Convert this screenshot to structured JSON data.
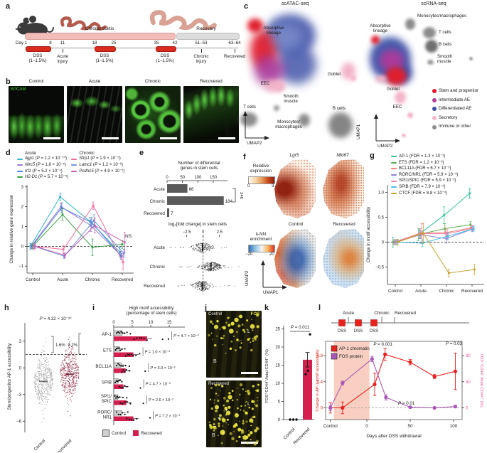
{
  "panel_a": {
    "label": "a",
    "phase1": "Chronic colitis",
    "phase2": "Recovery",
    "day1": "Day 1",
    "ticks": [
      "8",
      "11",
      "18",
      "25",
      "35",
      "42",
      "51–53",
      "63–64"
    ],
    "dss": [
      "DSS",
      "DSS",
      "DSS"
    ],
    "dose": "(1–1.5%)",
    "event_acute": "Acute\ninjury",
    "event_chronic": "Chronic\ninjury",
    "event_recovered": "Recovered"
  },
  "panel_b": {
    "label": "b",
    "stain": "EPCAM",
    "stain_color": "#51d43c",
    "titles": [
      "Control",
      "Acute",
      "Chronic",
      "Recovered"
    ]
  },
  "panel_c": {
    "label": "c",
    "atac_title": "scATAC-seq",
    "rna_title": "scRNA-seq",
    "labels": {
      "absorptive": "Absorptive\nlineage",
      "goblet": "Goblet",
      "eec": "EEC",
      "smooth": "Smooth\nmuscle",
      "tcells": "T cells",
      "mono2": "Monocytes/\nmacrophages",
      "mono1": "Monocytes/macrophages",
      "bcells": "B cells"
    },
    "axes": {
      "x": "UMAP2",
      "y": "UMAP1"
    },
    "legend": [
      {
        "label": "Stem and progenitor",
        "color": "#e8132f"
      },
      {
        "label": "Intermediate AE",
        "color": "#b0399a"
      },
      {
        "label": "Differentiated AE",
        "color": "#3d4fa1"
      },
      {
        "label": "Secretory",
        "color": "#f5b8c8"
      },
      {
        "label": "Immune or other",
        "color": "#8c8c8c"
      }
    ]
  },
  "panel_f": {
    "label": "f",
    "expr_legend_title": "Relative\nexpression",
    "expr_min": "0",
    "expr_max": "3",
    "knn_legend_title": "k-NN\nenrichment",
    "knn_min": "−20",
    "knn_max": "20",
    "plot1": "Lgr5",
    "plot2": "Mki67",
    "plot3": "Control",
    "plot4": "Recovered",
    "axes": {
      "x": "UMAP1",
      "y": "UMAP2"
    }
  },
  "panel_j": {
    "label": "j",
    "stain": "FOS",
    "stain_color": "#e8e23a",
    "img1": "Control",
    "img2": "Recovered",
    "lumen": "L",
    "base": "B"
  },
  "chart_data": [
    {
      "id": "d",
      "type": "line",
      "panel_label": "d",
      "ylabel": "Change in relative gene expression",
      "categories": [
        "Control",
        "Acute",
        "Chronic",
        "Recovered"
      ],
      "yticks": [
        -1,
        0,
        1,
        2,
        3
      ],
      "ylim": [
        -1.35,
        3.1
      ],
      "ns_note": "NS",
      "legend_groups": [
        {
          "title": "Acute",
          "series_idx": [
            0,
            1,
            2,
            3
          ]
        },
        {
          "title": "Chronic",
          "series_idx": [
            4,
            5,
            6
          ]
        }
      ],
      "series": [
        {
          "gene": "Iigp1",
          "p": "1.2 × 10⁻¹⁰",
          "color": "#2fb6cc",
          "values": [
            0,
            2.5,
            1.25,
            -0.3
          ],
          "err": [
            0.15,
            0.18,
            0.22,
            0.25
          ]
        },
        {
          "gene": "Nlrc5",
          "p": "1.8 × 10⁻⁵",
          "color": "#9d7ad1",
          "values": [
            0,
            2.0,
            1.05,
            -0.45
          ],
          "err": [
            0.12,
            0.18,
            0.3,
            0.2
          ]
        },
        {
          "gene": "Irf1",
          "p": "5.2 × 10⁻⁴",
          "color": "#4d82d8",
          "values": [
            0,
            1.95,
            1.2,
            -0.5
          ],
          "err": [
            0.12,
            0.25,
            0.25,
            0.15
          ]
        },
        {
          "gene": "H2-D1",
          "p": "5.7 × 10⁻⁵",
          "color": "#3aa344",
          "values": [
            0,
            1.6,
            -0.05,
            0.1
          ],
          "err": [
            0.12,
            0.3,
            0.42,
            0.2
          ]
        },
        {
          "gene": "Sfrp1",
          "p": "1.9 × 10⁻⁵",
          "color": "#f26d9d",
          "values": [
            0,
            -0.15,
            2.05,
            -0.8
          ],
          "err": [
            0.18,
            0.2,
            0.18,
            0.38
          ]
        },
        {
          "gene": "Lamc1",
          "p": "1.2 × 10⁻²",
          "color": "#7491de",
          "values": [
            0,
            -0.5,
            1.3,
            -0.35
          ],
          "err": [
            0.12,
            0.12,
            0.3,
            0.2
          ]
        },
        {
          "gene": "Pcdh15",
          "p": "4.9 × 10⁻²",
          "color": "#c95fb5",
          "values": [
            0,
            -0.45,
            1.05,
            0.2
          ],
          "err": [
            0.12,
            0.12,
            0.38,
            0.5
          ]
        }
      ]
    },
    {
      "id": "e_counts",
      "type": "bar",
      "panel_label": "e",
      "title": "Number of differential\ngenes in stem cells",
      "categories": [
        "Acute",
        "Chronic",
        "Recovered"
      ],
      "values": [
        66,
        184,
        7
      ],
      "xticks": [
        0,
        50,
        100,
        150
      ],
      "xlim": [
        0,
        195
      ],
      "bracket": "246",
      "bar_color": "#5a5a5a"
    },
    {
      "id": "e_fc",
      "type": "strip",
      "title": "log₂[fold change] in stem cells",
      "categories": [
        "Acute",
        "Chronic",
        "Recovered"
      ],
      "xtick_labels": [
        "−2.5",
        "0",
        "2.5"
      ],
      "xtick_vals": [
        -2.5,
        0,
        2.5
      ],
      "xlim": [
        -5.5,
        6
      ],
      "centers": [
        -0.1,
        1.2,
        -0.15
      ],
      "spreads": [
        0.9,
        0.95,
        0.85
      ],
      "n": [
        170,
        230,
        170
      ],
      "color": "#333333"
    },
    {
      "id": "g",
      "type": "line",
      "panel_label": "g",
      "ylabel": "Change in motif accessibility",
      "categories": [
        "Control",
        "Acute",
        "Chronic",
        "Recovered"
      ],
      "yticks": [
        -0.5,
        0,
        0.5,
        1.0
      ],
      "ytick_labels": [
        "−0.5",
        "0",
        "0.5",
        "1.0"
      ],
      "ylim": [
        -0.85,
        1.15
      ],
      "series": [
        {
          "name": "AP-1",
          "fdr": "1.3 × 10⁻³",
          "color": "#2fbf9a",
          "values": [
            0,
            0.15,
            0.54,
            0.98
          ],
          "err": [
            0.1,
            0.12,
            0.17,
            0.1
          ]
        },
        {
          "name": "ETS",
          "fdr": "1.2 × 10⁻³",
          "color": "#56b24e",
          "values": [
            0,
            0.16,
            0.27,
            0.35
          ],
          "err": [
            0.05,
            0.09,
            0.1,
            0.06
          ]
        },
        {
          "name": "BCL11A",
          "fdr": "6.7 × 10⁻³",
          "color": "#f0857a",
          "values": [
            0,
            0.18,
            0.19,
            0.29
          ],
          "err": [
            0.05,
            0.09,
            0.08,
            0.05
          ]
        },
        {
          "name": "RORC/NR1",
          "fdr": "5.9 × 10⁻³",
          "color": "#8f7fd4",
          "values": [
            0,
            0.15,
            0.07,
            0.26
          ],
          "err": [
            0.05,
            0.08,
            0.09,
            0.05
          ]
        },
        {
          "name": "SPI1/SPIC",
          "fdr": "5.9 × 10⁻³",
          "color": "#ef7fae",
          "values": [
            0,
            0.17,
            0.17,
            0.28
          ],
          "err": [
            0.05,
            0.2,
            0.08,
            0.05
          ]
        },
        {
          "name": "SPIB",
          "fdr": "7.9 × 10⁻³",
          "color": "#45c0e8",
          "values": [
            0,
            -0.02,
            0.12,
            0.27
          ],
          "err": [
            0.05,
            0.07,
            0.07,
            0.05
          ]
        },
        {
          "name": "CTCF",
          "fdr": "8.8 × 10⁻³",
          "color": "#c8a02c",
          "values": [
            0,
            0.18,
            -0.62,
            -0.55
          ],
          "err": [
            0.06,
            0.2,
            0.08,
            0.1
          ]
        }
      ]
    },
    {
      "id": "h",
      "type": "jitter",
      "panel_label": "h",
      "ylabel": "Stem/progenitor AP-1 accessibility",
      "p": "4.32 × 10⁻³⁰",
      "categories": [
        "Control",
        "Recovered"
      ],
      "colors": [
        "#9c9c9c",
        "#8e2740"
      ],
      "yticks": [
        3,
        0,
        -3,
        -6
      ],
      "ylim": [
        -7.1,
        4.9
      ],
      "threshold": 1.5,
      "percents": [
        "1.6%",
        "9.2%"
      ],
      "centers": [
        -1.5,
        -0.7
      ],
      "sd": [
        1.25,
        1.3
      ],
      "n": [
        430,
        430
      ]
    },
    {
      "id": "i",
      "type": "hbar_group",
      "panel_label": "i",
      "title": "High motif accessibility\n(percentage of stem cells)",
      "xticks": [
        0,
        5,
        10,
        15
      ],
      "control_color": "#cfcfcf",
      "recovered_color": "#d41e4e",
      "rows": [
        {
          "name": "AP-1",
          "control": 2.3,
          "recovered": 9.0,
          "p": "4.7 × 10⁻⁴",
          "c_dots": [
            0.8,
            1.2,
            1.6,
            2.0,
            2.4,
            2.9,
            3.6,
            4.5
          ],
          "r_dots": [
            5.5,
            6.2,
            7.0,
            7.5,
            8.2,
            9.0,
            13.2,
            14.8
          ]
        },
        {
          "name": "ETS",
          "control": 1.6,
          "recovered": 5.3,
          "p": "1.0 × 10⁻³",
          "c_dots": [
            0.5,
            0.8,
            1.1,
            1.4,
            1.8,
            2.2,
            3.0
          ],
          "r_dots": [
            3.2,
            3.8,
            4.3,
            4.8,
            5.3,
            6.0,
            7.0
          ]
        },
        {
          "name": "BCL11A",
          "control": 2.0,
          "recovered": 3.2,
          "p": "3.0 × 10⁻²",
          "c_dots": [
            0.8,
            1.2,
            1.6,
            2.0,
            2.5,
            3.2,
            4.2
          ],
          "r_dots": [
            2.2,
            2.6,
            3.0,
            3.4,
            4.2,
            8.5
          ]
        },
        {
          "name": "SPIB",
          "control": 1.2,
          "recovered": 2.6,
          "p": "4.7 × 10⁻³",
          "c_dots": [
            0.4,
            0.7,
            1.0,
            1.3,
            1.7,
            2.2
          ],
          "r_dots": [
            1.5,
            2.0,
            2.5,
            3.0,
            3.6,
            7.2
          ]
        },
        {
          "name": "SPI1/\nSPIC",
          "control": 1.1,
          "recovered": 3.4,
          "p": "2.6 × 10⁻²",
          "c_dots": [
            0.3,
            0.6,
            0.9,
            1.2,
            1.6,
            2.5,
            3.5
          ],
          "r_dots": [
            1.8,
            2.4,
            3.0,
            3.6,
            4.5,
            8.0
          ]
        },
        {
          "name": "RORC/\nNR1",
          "control": 2.2,
          "recovered": 5.3,
          "p": "7.2 × 10⁻³",
          "c_dots": [
            0.8,
            1.3,
            1.8,
            2.3,
            3.0,
            3.8
          ],
          "r_dots": [
            3.5,
            4.2,
            4.8,
            5.4,
            6.2,
            9.8
          ]
        }
      ],
      "legend": [
        {
          "label": "Control"
        },
        {
          "label": "Recovered"
        }
      ]
    },
    {
      "id": "k",
      "type": "bar_dots",
      "panel_label": "k",
      "ylabel": "FOS⁺CD44⁺/total CD44⁺ (%)",
      "p": "0.011",
      "categories": [
        "Control",
        "Recovered"
      ],
      "values": [
        0,
        16.5
      ],
      "err": [
        0,
        2.0
      ],
      "dots": [
        [
          0,
          0,
          0
        ],
        [
          12.5,
          13.5,
          23.5
        ]
      ],
      "yticks": [
        0,
        5,
        10,
        15,
        20,
        25
      ],
      "bar_color": "#d41e4e"
    },
    {
      "id": "l",
      "type": "dual_line",
      "panel_label": "l",
      "timeline": {
        "phases": [
          "Acute",
          "Chronic",
          "Recovered"
        ],
        "dss": [
          "DSS",
          "DSS",
          "DSS"
        ],
        "square_color": "#e8211c"
      },
      "xlabel": "Days after DSS withdrawal",
      "xticks": [
        {
          "label": "Control",
          "d": -42
        },
        {
          "label": "0",
          "d": 0
        },
        {
          "label": "50",
          "d": 50
        },
        {
          "label": "100",
          "d": 100
        }
      ],
      "left_axis": {
        "label": "Change in AP-1 motif accessibility",
        "color": "#e8211c",
        "ticks": [
          0,
          0.4,
          0.8
        ],
        "lim": [
          -0.18,
          1.02
        ]
      },
      "right_axis": {
        "label": "FOS⁺CD44⁺/total CD44⁺ (%)",
        "color": "#e0559f",
        "ticks": [
          0,
          40,
          80
        ],
        "lim": [
          -18,
          102
        ]
      },
      "shade": {
        "from": -38,
        "to": 3,
        "color": "#f8cfc0"
      },
      "series": [
        {
          "name": "AP-1 chromatin",
          "color": "#e8211c",
          "axis": "left",
          "x": [
            -42,
            -28,
            9,
            21,
            50,
            78,
            102
          ],
          "y": [
            0,
            0,
            0.36,
            0.82,
            0.7,
            0.48,
            0.56
          ],
          "err": [
            0.08,
            0.09,
            0.17,
            0.09,
            0.04,
            0.03,
            0.28
          ]
        },
        {
          "name": "FOS protein",
          "color": "#ab57b8",
          "axis": "right",
          "x": [
            -42,
            -28,
            6,
            22,
            50,
            78,
            102
          ],
          "y": [
            0,
            38,
            75,
            16,
            1,
            0,
            2
          ],
          "err": [
            4,
            3,
            4,
            4,
            1.5,
            1.5,
            2
          ]
        }
      ],
      "annotations": [
        {
          "text": "0.001",
          "x": 108,
          "y": 14,
          "anchor": "end"
        },
        {
          "text": "0.03",
          "x": 206,
          "y": 13,
          "anchor": "end"
        },
        {
          "text": "0.01",
          "x": 116,
          "y": 97,
          "anchor": "start"
        }
      ]
    }
  ]
}
